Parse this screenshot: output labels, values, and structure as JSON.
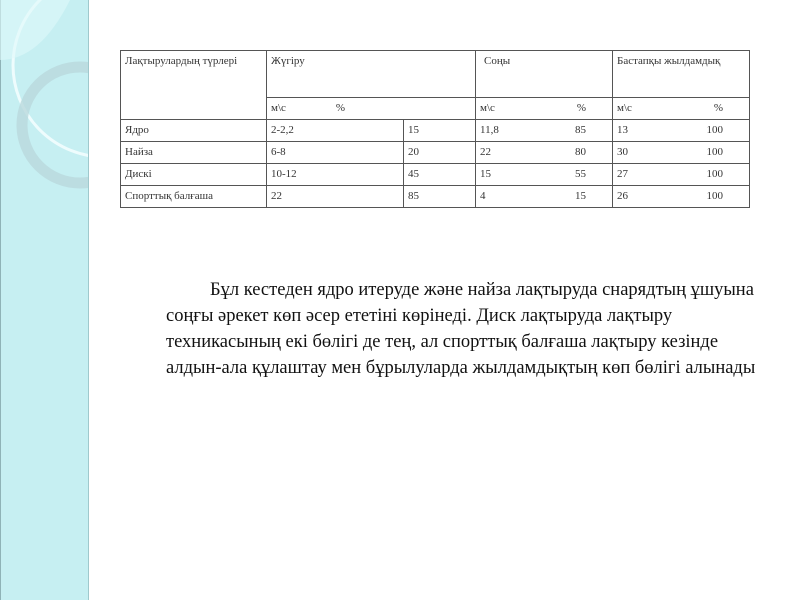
{
  "table": {
    "header": {
      "col1": "Лақтырулардың түрлері",
      "col2": "Жүгіру",
      "col3": "Соңы",
      "col4": "Бастапқы жылдамдық"
    },
    "subheader": {
      "unit_speed": "м\\с",
      "unit_percent": "%"
    },
    "rows": [
      {
        "name": "Ядро",
        "run_speed": "2-2,2",
        "run_pct": "15",
        "end_speed": "11,8",
        "end_pct": "85",
        "init_speed": "13",
        "init_pct": "100"
      },
      {
        "name": "Найза",
        "run_speed": "6-8",
        "run_pct": "20",
        "end_speed": "22",
        "end_pct": "80",
        "init_speed": "30",
        "init_pct": "100"
      },
      {
        "name": "Дискі",
        "run_speed": "10-12",
        "run_pct": "45",
        "end_speed": "15",
        "end_pct": "55",
        "init_speed": "27",
        "init_pct": "100"
      },
      {
        "name": "Спорттық балғаша",
        "run_speed": "22",
        "run_pct": "85",
        "end_speed": "4",
        "end_pct": "15",
        "init_speed": "26",
        "init_pct": "100"
      }
    ]
  },
  "paragraph": "Бұл кестеден ядро итеруде және найза лақтыруда снарядтың ұшуына соңғы әрекет көп әсер ететіні көрінеді. Диск лақтыруда лақтыру техникасының екі бөлігі де тең, ал спорттық балғаша лақтыру кезінде алдын-ала құлаштау мен бұрылуларда жылдамдықтың көп бөлігі алынады",
  "colors": {
    "sidebar": "#c6eff2"
  }
}
